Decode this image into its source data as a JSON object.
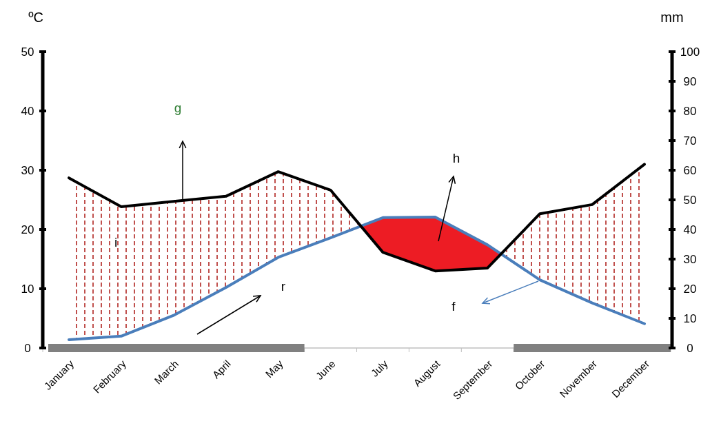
{
  "chart_data": {
    "type": "line",
    "ylabel": "ºC",
    "y2label": "mm",
    "categories": [
      "January",
      "February",
      "March",
      "April",
      "May",
      "June",
      "July",
      "August",
      "September",
      "October",
      "November",
      "December"
    ],
    "series": [
      {
        "color": "#4a7ebb",
        "axis": "y",
        "values": [
          1.4,
          2.0,
          5.5,
          10.2,
          15.3,
          18.6,
          22.0,
          22.1,
          17.4,
          11.5,
          7.6,
          4.1
        ]
      },
      {
        "color": "#000000",
        "axis": "y2",
        "values": [
          57.4,
          47.7,
          49.5,
          51.2,
          59.5,
          53.3,
          32.3,
          26.0,
          27.0,
          45.3,
          48.4,
          62.0
        ]
      }
    ],
    "ylim": [
      0,
      50
    ],
    "yticks": [
      0,
      10,
      20,
      30,
      40,
      50
    ],
    "y2lim": [
      0,
      100
    ],
    "y2ticks": [
      0,
      10,
      20,
      30,
      40,
      50,
      60,
      70,
      80,
      90,
      100
    ],
    "annotations": [
      "g",
      "h",
      "i",
      "r",
      "f"
    ]
  }
}
